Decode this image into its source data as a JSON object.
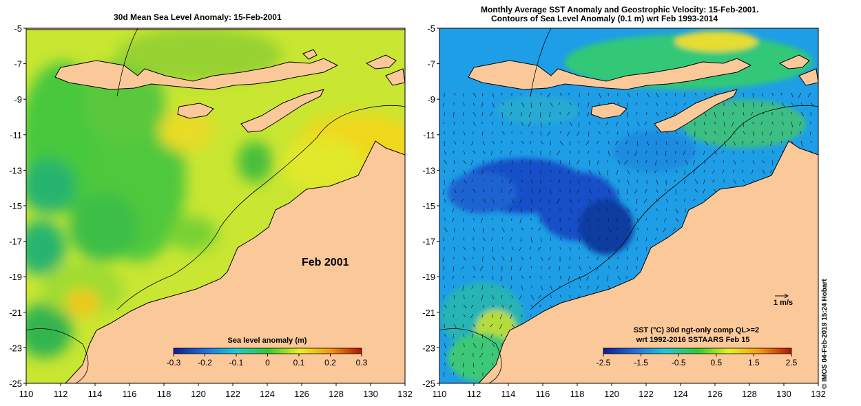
{
  "left_panel": {
    "title": "30d Mean Sea Level Anomaly: 15-Feb-2001",
    "label": "Feb 2001",
    "colorbar": {
      "title": "Sea level anomaly (m)",
      "ticks": [
        "-0.3",
        "-0.2",
        "-0.1",
        "0",
        "0.1",
        "0.2",
        "0.3"
      ],
      "range": [
        -0.3,
        0.3
      ]
    }
  },
  "right_panel": {
    "title_line1": "Monthly Average SST Anomaly  and Geostrophic Velocity: 15-Feb-2001.",
    "title_line2": "Contours of Sea Level Anomaly (0.1 m) wrt Feb 1993-2014",
    "scale_label": "1 m/s",
    "colorbar": {
      "title_line1": "SST (°C) 30d ngt-only comp QL>=2",
      "title_line2": "wrt 1992-2016 SSTAARS Feb 15",
      "ticks": [
        "-2.5",
        "-1.5",
        "-0.5",
        "0.5",
        "1.5",
        "2.5"
      ],
      "range": [
        -2.5,
        2.5
      ]
    }
  },
  "axes": {
    "lon_ticks": [
      "110",
      "112",
      "114",
      "116",
      "118",
      "120",
      "122",
      "124",
      "126",
      "128",
      "130",
      "132"
    ],
    "lat_ticks": [
      "-5",
      "-7",
      "-9",
      "-11",
      "-13",
      "-15",
      "-17",
      "-19",
      "-21",
      "-23",
      "-25"
    ],
    "lon_range": [
      110,
      132
    ],
    "lat_range": [
      -25,
      -5
    ]
  },
  "credit": "© IMOS 04-Feb-2019 15:24 Hobart",
  "colors": {
    "land": "#fbc89a",
    "sla_base": "#c8e632",
    "sst_base": "#1e9ee6"
  }
}
